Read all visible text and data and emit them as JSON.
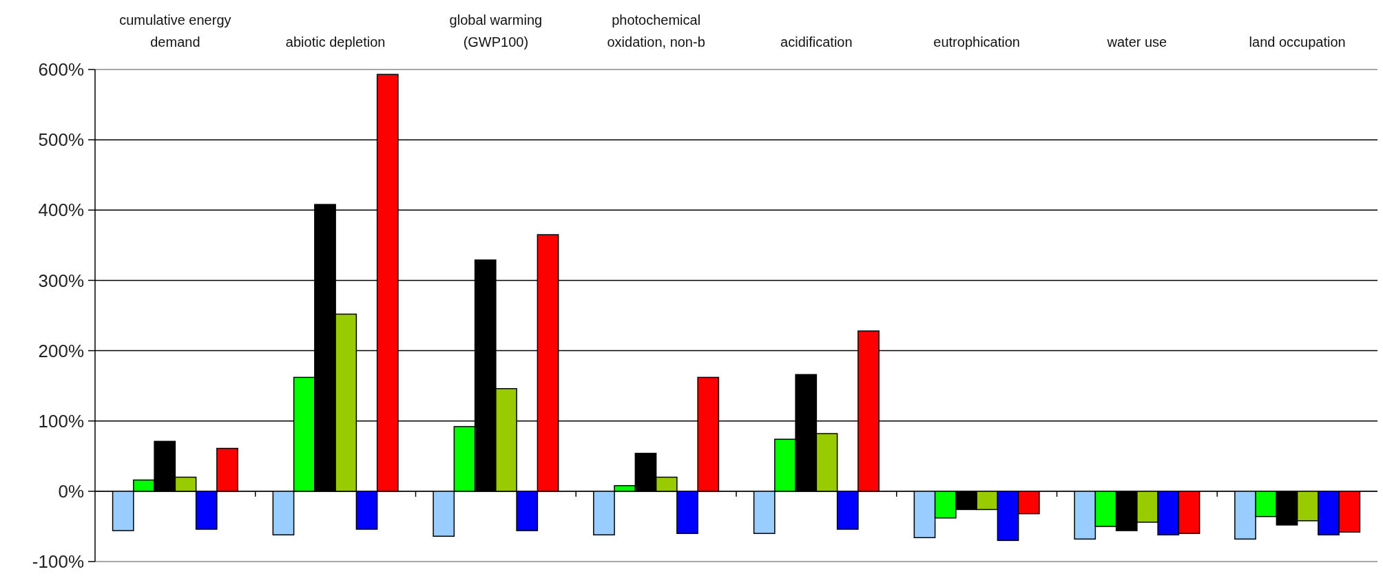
{
  "chart_data": {
    "type": "bar",
    "categories": [
      "cumulative energy demand",
      "abiotic depletion",
      "global warming (GWP100)",
      "photochemical oxidation, non-b",
      "acidification",
      "eutrophication",
      "water use",
      "land occupation"
    ],
    "series": [
      {
        "color": "#99ccff",
        "values": [
          -56,
          -62,
          -64,
          -62,
          -60,
          -66,
          -68,
          -68
        ]
      },
      {
        "color": "#00ff00",
        "values": [
          16,
          162,
          92,
          8,
          74,
          -38,
          -50,
          -36
        ]
      },
      {
        "color": "#000000",
        "values": [
          71,
          408,
          329,
          54,
          166,
          -26,
          -56,
          -48
        ]
      },
      {
        "color": "#99cc00",
        "values": [
          20,
          252,
          146,
          20,
          82,
          -26,
          -44,
          -42
        ]
      },
      {
        "color": "#0000ff",
        "values": [
          -54,
          -54,
          -56,
          -60,
          -54,
          -70,
          -62,
          -62
        ]
      },
      {
        "color": "#ff0000",
        "values": [
          61,
          593,
          365,
          162,
          228,
          -32,
          -60,
          -58
        ]
      }
    ],
    "ylim": [
      -100,
      600
    ],
    "yticks": [
      {
        "value": -100,
        "label": "-100%"
      },
      {
        "value": 0,
        "label": "0%"
      },
      {
        "value": 100,
        "label": "100%"
      },
      {
        "value": 200,
        "label": "200%"
      },
      {
        "value": 300,
        "label": "300%"
      },
      {
        "value": 400,
        "label": "400%"
      },
      {
        "value": 500,
        "label": "500%"
      },
      {
        "value": 600,
        "label": "600%"
      }
    ],
    "grid": "y"
  }
}
